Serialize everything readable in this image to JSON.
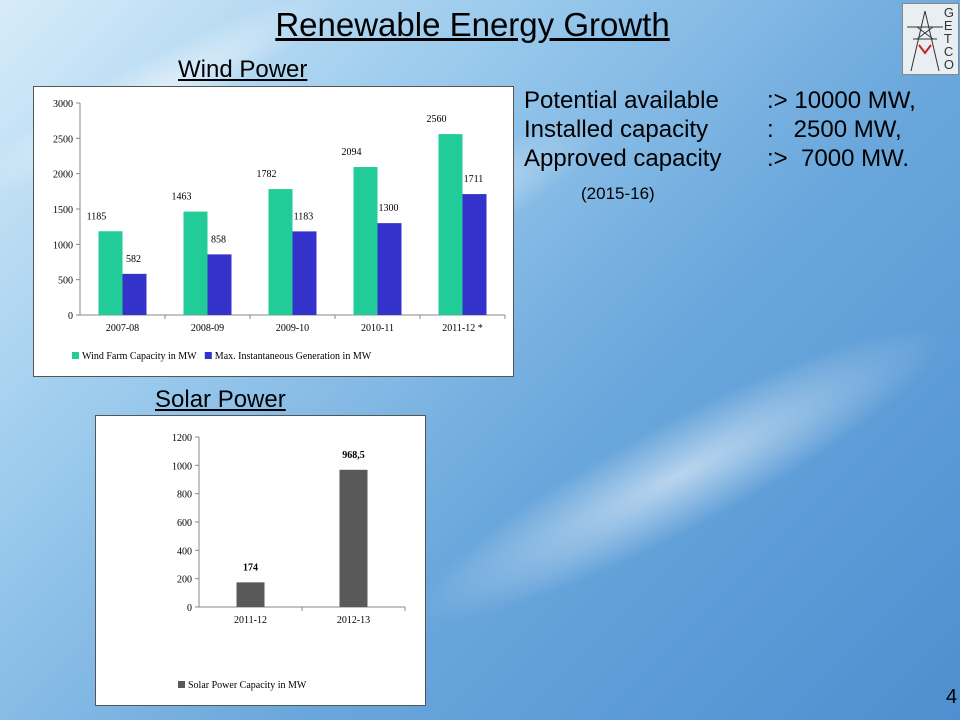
{
  "slide": {
    "title": "Renewable Energy Growth",
    "page_number": "4",
    "logo_letters": [
      "G",
      "E",
      "T",
      "C",
      "O"
    ]
  },
  "wind": {
    "heading": "Wind Power",
    "info": [
      {
        "label": "Potential available",
        "value": ":> 10000 MW,"
      },
      {
        "label": "Installed capacity",
        "value": ":   2500 MW,"
      },
      {
        "label": "Approved capacity",
        "value": ":>  7000 MW."
      }
    ],
    "note": "(2015-16)"
  },
  "solar": {
    "heading": "Solar Power"
  },
  "colors": {
    "wind_capacity": "#22cc99",
    "wind_generation": "#3333cc",
    "solar": "#595959"
  },
  "chart_data": [
    {
      "type": "bar",
      "categories": [
        "2007-08",
        "2008-09",
        "2009-10",
        "2010-11",
        "2011-12 *"
      ],
      "series": [
        {
          "name": "Wind Farm Capacity in MW",
          "values": [
            1185,
            1463,
            1782,
            2094,
            2560
          ],
          "labels": [
            "1185",
            "1463",
            "1782",
            "2094",
            "2560"
          ]
        },
        {
          "name": "Max. Instantaneous Generation in MW",
          "values": [
            582,
            858,
            1183,
            1300,
            1711
          ],
          "labels": [
            "582",
            "858",
            "1183",
            "1300",
            "1711"
          ]
        }
      ],
      "ylim": [
        0,
        3000
      ],
      "yticks": [
        "0",
        "500",
        "1000",
        "1500",
        "2000",
        "2500",
        "3000"
      ],
      "legend": "bottom",
      "grid": false
    },
    {
      "type": "bar",
      "categories": [
        "2011-12",
        "2012-13"
      ],
      "series": [
        {
          "name": "Solar Power Capacity in MW",
          "values": [
            174,
            968.5
          ],
          "labels": [
            "174",
            "968,5"
          ]
        }
      ],
      "ylim": [
        0,
        1200
      ],
      "yticks": [
        "0",
        "200",
        "400",
        "600",
        "800",
        "1000",
        "1200"
      ],
      "legend": "bottom",
      "grid": false
    }
  ]
}
